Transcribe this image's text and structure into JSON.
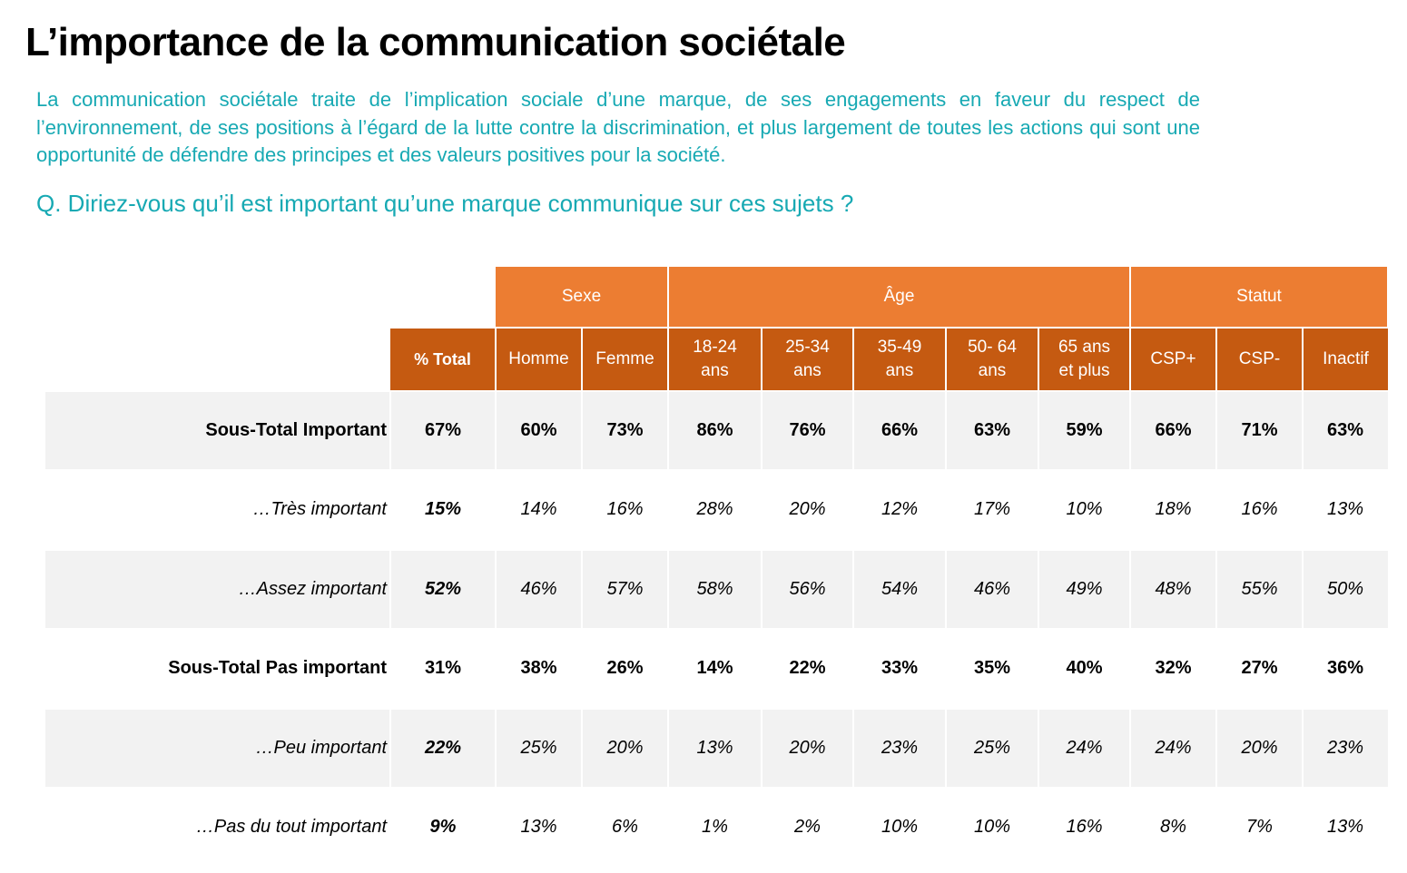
{
  "title": "L’importance de la communication sociétale",
  "intro": "La communication sociétale traite de l’implication sociale d’une marque, de ses engagements en faveur du respect de l’environnement, de ses positions à l’égard de la lutte contre la discrimination, et plus largement de toutes les actions qui sont une opportunité de défendre des principes et des valeurs positives pour la société.",
  "question": "Q. Diriez-vous qu’il est important qu’une marque communique sur ces sujets ?",
  "colors": {
    "accent_text": "#17a9b3",
    "group_header": "#ec7d32",
    "column_header": "#c55a11",
    "row_shade": "#f2f2f2"
  },
  "table": {
    "groups": [
      {
        "label": "Sexe",
        "span": 2
      },
      {
        "label": "Âge",
        "span": 5
      },
      {
        "label": "Statut",
        "span": 3
      }
    ],
    "columns": [
      "% Total",
      "Homme",
      "Femme",
      "18-24 ans",
      "25-34 ans",
      "35-49 ans",
      "50- 64 ans",
      "65 ans et plus",
      "CSP+",
      "CSP-",
      "Inactif"
    ],
    "rows": [
      {
        "label": "Sous-Total Important",
        "style": "subtotal",
        "shaded": true,
        "values": [
          "67%",
          "60%",
          "73%",
          "86%",
          "76%",
          "66%",
          "63%",
          "59%",
          "66%",
          "71%",
          "63%"
        ]
      },
      {
        "label": "…Très important",
        "style": "detail",
        "shaded": false,
        "values": [
          "15%",
          "14%",
          "16%",
          "28%",
          "20%",
          "12%",
          "17%",
          "10%",
          "18%",
          "16%",
          "13%"
        ]
      },
      {
        "label": "…Assez important",
        "style": "detail",
        "shaded": true,
        "values": [
          "52%",
          "46%",
          "57%",
          "58%",
          "56%",
          "54%",
          "46%",
          "49%",
          "48%",
          "55%",
          "50%"
        ]
      },
      {
        "label": "Sous-Total Pas important",
        "style": "subtotal",
        "shaded": false,
        "values": [
          "31%",
          "38%",
          "26%",
          "14%",
          "22%",
          "33%",
          "35%",
          "40%",
          "32%",
          "27%",
          "36%"
        ]
      },
      {
        "label": "…Peu important",
        "style": "detail",
        "shaded": true,
        "values": [
          "22%",
          "25%",
          "20%",
          "13%",
          "20%",
          "23%",
          "25%",
          "24%",
          "24%",
          "20%",
          "23%"
        ]
      },
      {
        "label": "…Pas du tout important",
        "style": "detail",
        "shaded": false,
        "values": [
          "9%",
          "13%",
          "6%",
          "1%",
          "2%",
          "10%",
          "10%",
          "16%",
          "8%",
          "7%",
          "13%"
        ]
      }
    ]
  }
}
